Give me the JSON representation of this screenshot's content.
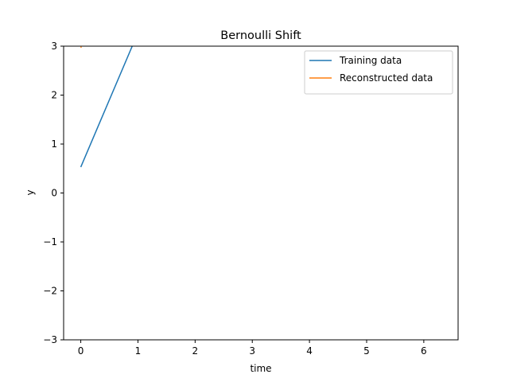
{
  "chart_data": {
    "type": "line",
    "title": "Bernoulli Shift",
    "xlabel": "time",
    "ylabel": "y",
    "xlim": [
      -0.3,
      6.6
    ],
    "ylim": [
      -3,
      3
    ],
    "xticks": [
      0,
      1,
      2,
      3,
      4,
      5,
      6
    ],
    "yticks": [
      -3,
      -2,
      -1,
      0,
      1,
      2,
      3
    ],
    "xtick_labels": [
      "0",
      "1",
      "2",
      "3",
      "4",
      "5",
      "6"
    ],
    "ytick_labels": [
      "−3",
      "−2",
      "−1",
      "0",
      "1",
      "2",
      "3"
    ],
    "grid": false,
    "legend_position": "upper right",
    "series": [
      {
        "name": "Training data",
        "color": "#1f77b4",
        "x": [
          0,
          0.9
        ],
        "y": [
          0.53,
          3.0
        ]
      },
      {
        "name": "Reconstructed data",
        "color": "#ff7f0e",
        "x": [
          0,
          0.01
        ],
        "y": [
          2.97,
          2.99
        ]
      }
    ]
  }
}
